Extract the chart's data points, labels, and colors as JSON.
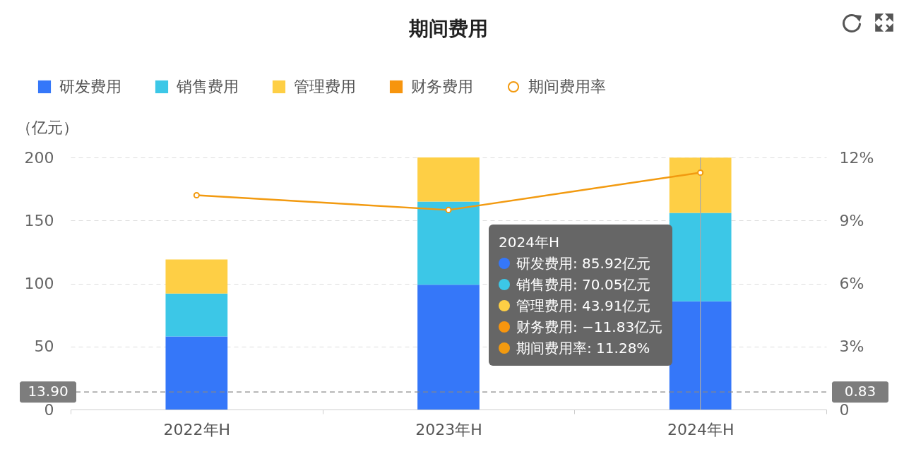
{
  "chart_data": {
    "type": "bar",
    "title": "期间费用",
    "ylabel": "（亿元）",
    "categories": [
      "2022年H",
      "2023年H",
      "2024年H"
    ],
    "series": [
      {
        "name": "研发费用",
        "color": "#3577f9",
        "values": [
          58,
          99,
          85.92
        ]
      },
      {
        "name": "销售费用",
        "color": "#3cc7e7",
        "values": [
          34,
          66,
          70.05
        ]
      },
      {
        "name": "管理费用",
        "color": "#fecf45",
        "values": [
          27,
          35,
          43.91
        ]
      },
      {
        "name": "财务费用",
        "color": "#f7950e",
        "values": [
          null,
          null,
          null
        ]
      },
      {
        "name": "期间费用率",
        "type": "line",
        "axis": "y2",
        "color": "#f29a10",
        "values": [
          10.2,
          9.5,
          11.28
        ]
      }
    ],
    "stacked": true,
    "ylim": [
      0,
      200
    ],
    "yticks": [
      0,
      50,
      100,
      150,
      200
    ],
    "y2lim": [
      0,
      12
    ],
    "y2ticks": [
      0,
      {
        "value": 3,
        "label": "3%"
      },
      {
        "value": 6,
        "label": "6%"
      },
      {
        "value": 9,
        "label": "9%"
      },
      {
        "value": 12,
        "label": "12%"
      }
    ],
    "grid": "y",
    "legend": "top left",
    "marker": "circle",
    "ref_lines": [
      {
        "axis": "y",
        "value": 13.9,
        "label": "13.90",
        "color": "#888888",
        "line_style": "dashed"
      },
      {
        "axis": "x",
        "value": "2024年H",
        "label": null,
        "color": "#aaaaaa",
        "line_style": "solid"
      }
    ],
    "annotations": [
      "2024年H",
      "研发费用: 85.92亿元",
      "销售费用: 70.05亿元",
      "管理费用: 43.91亿元",
      "财务费用: −11.83亿元",
      "期间费用率: 11.28%",
      "0.83"
    ]
  }
}
